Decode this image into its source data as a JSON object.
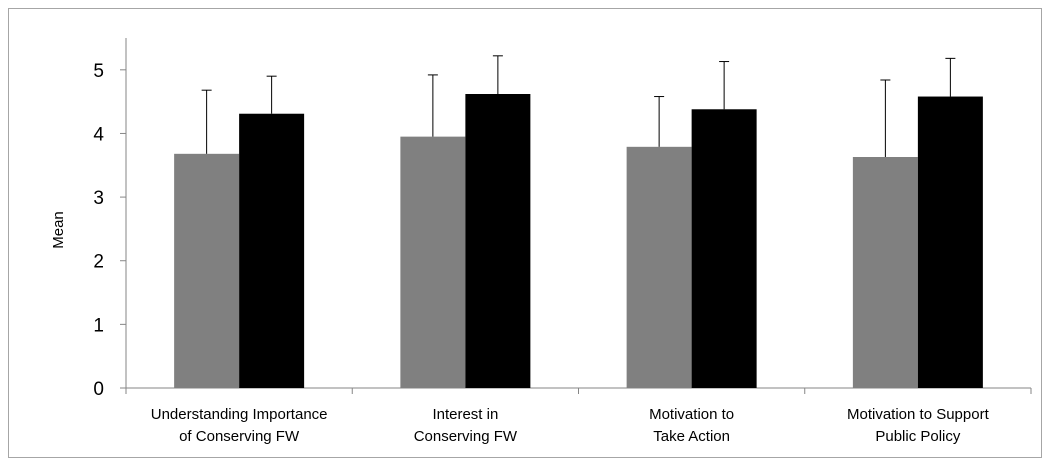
{
  "chart_data": {
    "type": "bar",
    "title": "",
    "xlabel": "",
    "ylabel": "Mean",
    "ylim": [
      0,
      5.5
    ],
    "yticks": [
      "0",
      "1",
      "2",
      "3",
      "4",
      "5"
    ],
    "grid": false,
    "legend": "none",
    "categories": [
      [
        "Understanding Importance",
        "of Conserving FW"
      ],
      [
        "Interest in",
        "Conserving FW"
      ],
      [
        "Motivation to",
        "Take Action"
      ],
      [
        "Motivation to Support",
        "Public Policy"
      ]
    ],
    "series": [
      {
        "color": "#808080",
        "values": [
          3.68,
          3.95,
          3.79,
          3.63
        ],
        "error": [
          1.0,
          0.97,
          0.79,
          1.21
        ]
      },
      {
        "color": "#000000",
        "values": [
          4.31,
          4.62,
          4.38,
          4.58
        ],
        "error": [
          0.59,
          0.6,
          0.75,
          0.6
        ]
      }
    ]
  }
}
